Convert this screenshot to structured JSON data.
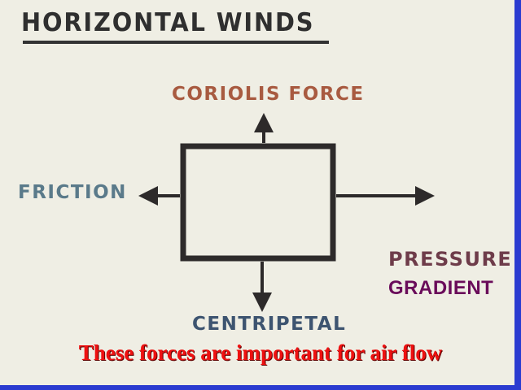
{
  "slide": {
    "title": "HORIZONTAL WINDS",
    "caption": "These forces are important for air flow"
  },
  "diagram": {
    "labels": {
      "top": "CORIOLIS FORCE",
      "left": "FRICTION",
      "bottom": "CENTRIPETAL",
      "right_line1": "PRESSURE",
      "right_line2": "GRADIENT"
    }
  },
  "colors": {
    "background": "#efeee4",
    "border": "#2a3bd0",
    "caption": "#ee1111",
    "box": "#2d2a2a"
  }
}
